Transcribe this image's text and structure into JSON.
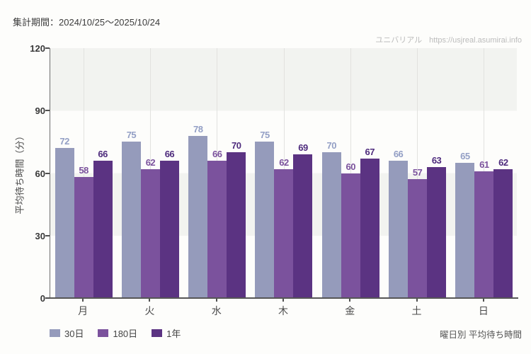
{
  "header": {
    "title": "集計期間：2024/10/25～2025/10/24"
  },
  "watermark": {
    "brand": "ユニバリアル",
    "url": "https://usjreal.asumirai.info"
  },
  "footer": {
    "caption": "曜日別 平均待ち時間"
  },
  "chart_data": {
    "type": "bar",
    "title": "曜日別 平均待ち時間",
    "xlabel": "",
    "ylabel": "平均待ち時間（分）",
    "ylim": [
      0,
      120
    ],
    "yticks": [
      0,
      30,
      60,
      90,
      120
    ],
    "categories": [
      "月",
      "火",
      "水",
      "木",
      "金",
      "土",
      "日"
    ],
    "series": [
      {
        "name": "30日",
        "color": "#959bbb",
        "label_color": "#939fc5",
        "values": [
          72,
          75,
          78,
          75,
          70,
          66,
          65
        ]
      },
      {
        "name": "180日",
        "color": "#7b529d",
        "label_color": "#7b529d",
        "values": [
          58,
          62,
          66,
          62,
          60,
          57,
          61
        ]
      },
      {
        "name": "1年",
        "color": "#5b3382",
        "label_color": "#4e2b7d",
        "values": [
          66,
          66,
          70,
          69,
          67,
          63,
          62
        ]
      }
    ],
    "legend_position": "bottom-left",
    "grid": "vertical-lines-and-horizontal-bands",
    "band_colors": [
      "#fdfdfb",
      "#f2f3f0"
    ],
    "gridline_color": "#e2e2df",
    "axis_color": "#565656"
  }
}
